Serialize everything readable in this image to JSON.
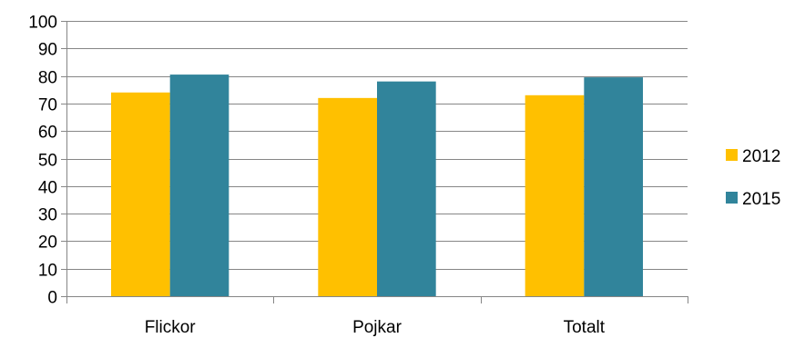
{
  "chart_data": {
    "type": "bar",
    "categories": [
      "Flickor",
      "Pojkar",
      "Totalt"
    ],
    "series": [
      {
        "name": "2012",
        "values": [
          74,
          72,
          73
        ],
        "color": "#FFC000"
      },
      {
        "name": "2015",
        "values": [
          80.5,
          78,
          79.5
        ],
        "color": "#31849B"
      }
    ],
    "ylim": [
      0,
      100
    ],
    "yticks": [
      0,
      10,
      20,
      30,
      40,
      50,
      60,
      70,
      80,
      90,
      100
    ],
    "grid": true,
    "legend_position": "right"
  }
}
